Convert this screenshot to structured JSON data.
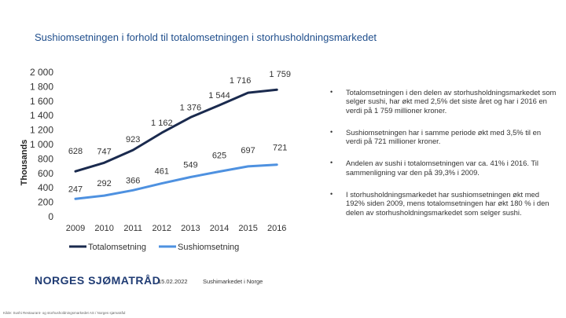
{
  "page": {
    "title": "Sushiomsetningen i forhold til totalomsetningen i storhusholdningsmarkedet"
  },
  "chart_data": {
    "type": "line",
    "x": [
      "2009",
      "2010",
      "2011",
      "2012",
      "2013",
      "2014",
      "2015",
      "2016"
    ],
    "series": [
      {
        "name": "Totalomsetning",
        "values": [
          628,
          747,
          923,
          1162,
          1376,
          1544,
          1716,
          1759
        ],
        "color": "#1a2a4e"
      },
      {
        "name": "Sushiomsetning",
        "values": [
          247,
          292,
          366,
          461,
          549,
          625,
          697,
          721
        ],
        "color": "#4e91e0"
      }
    ],
    "value_labels": {
      "Totalomsetning": [
        "628",
        "747",
        "923",
        "1 162",
        "1 376",
        "1 544",
        "1 716",
        "1 759"
      ],
      "Sushiomsetning": [
        "247",
        "292",
        "366",
        "461",
        "549",
        "625",
        "697",
        "721"
      ]
    },
    "ylabel": "Thousands",
    "ylim": [
      0,
      2000
    ],
    "yticks": [
      0,
      200,
      400,
      600,
      800,
      1000,
      1200,
      1400,
      1600,
      1800,
      2000
    ],
    "ytick_labels": [
      "0",
      "200",
      "400",
      "600",
      "800",
      "1 000",
      "1 200",
      "1 400",
      "1 600",
      "1 800",
      "2 000"
    ],
    "legend": "bottom",
    "grid": false
  },
  "bullets": [
    {
      "text": "Totalomsetningen i den delen av storhusholdningsmarkedet som selger sushi, har økt med 2,5% det siste året og har i 2016 en verdi på 1 759 millioner kroner."
    },
    {
      "text": "Sushiomsetningen har i samme periode økt med 3,5% til en verdi på 721 millioner kroner."
    },
    {
      "text": "Andelen av sushi i totalomsetningen var ca. 41% i 2016. Til sammenligning var den på 39,3% i 2009."
    },
    {
      "text": "I storhusholdningsmarkedet har sushiomsetningen økt med 192% siden 2009, mens totalomsetningen har økt 180 % i den delen av storhusholdningsmarkedet som selger sushi."
    }
  ],
  "footer": {
    "logo_text": "NORGES SJØMATRÅD",
    "date": "15.02.2022",
    "doc_title": "Sushimarkedet i Norge",
    "source": "Kilde: Sushi Restaurant- og storhusholdningsmarkedet AS / Norges sjømatråd"
  }
}
